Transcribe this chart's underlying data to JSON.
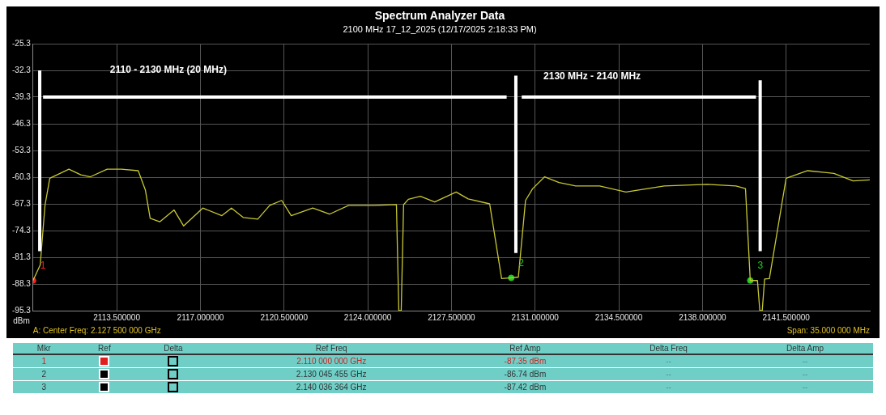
{
  "chart_data": {
    "type": "line",
    "title": "Spectrum Analyzer Data",
    "subtitle": "2100 MHz 17_12_2025 (12/17/2025 2:18:33 PM)",
    "ylabel": "dBm",
    "xlim": [
      2110,
      2145
    ],
    "xticks": [
      {
        "value": 2113.5,
        "label": "2113.500000"
      },
      {
        "value": 2117,
        "label": "2117.000000"
      },
      {
        "value": 2120.5,
        "label": "2120.500000"
      },
      {
        "value": 2124,
        "label": "2124.000000"
      },
      {
        "value": 2127.5,
        "label": "2127.500000"
      },
      {
        "value": 2131,
        "label": "2131.000000"
      },
      {
        "value": 2134.5,
        "label": "2134.500000"
      },
      {
        "value": 2138,
        "label": "2138.000000"
      },
      {
        "value": 2141.5,
        "label": "2141.500000"
      }
    ],
    "ylim": [
      -95.3,
      -25.3
    ],
    "yticks": [
      -95.3,
      -88.3,
      -81.3,
      -74.3,
      -67.3,
      -60.3,
      -53.3,
      -46.3,
      -39.3,
      -32.3,
      -25.3
    ],
    "grid": true,
    "legend": false,
    "series": [
      {
        "color": "#c8c832",
        "marker": "none",
        "x": [
          2110,
          2110.3,
          2110.5,
          2110.7,
          2111.2,
          2111.5,
          2112,
          2112.4,
          2113.1,
          2113.7,
          2114.4,
          2114.7,
          2114.9,
          2115.3,
          2115.9,
          2116.3,
          2117.1,
          2117.9,
          2118.3,
          2118.8,
          2119.4,
          2119.9,
          2120.4,
          2120.8,
          2121.7,
          2122.4,
          2123.2,
          2124.3,
          2125.2,
          2125.3,
          2125.4,
          2125.5,
          2125.7,
          2126.2,
          2126.8,
          2127.7,
          2128.2,
          2129.1,
          2129.6,
          2130,
          2130.3,
          2130.6,
          2130.9,
          2131.4,
          2132,
          2132.7,
          2133.7,
          2134.8,
          2136.4,
          2138.2,
          2139.4,
          2139.8,
          2140,
          2140.3,
          2140.4,
          2140.5,
          2140.6,
          2140.8,
          2141.5,
          2142.4,
          2143.5,
          2144.3,
          2145
        ],
        "values": [
          -87.4,
          -83.3,
          -67.7,
          -60.6,
          -59.1,
          -58.2,
          -59.7,
          -60.2,
          -58.2,
          -58.2,
          -58.6,
          -63.7,
          -71.1,
          -72,
          -68.9,
          -73.1,
          -68.4,
          -70.4,
          -68.4,
          -70.9,
          -71.3,
          -67.7,
          -66.4,
          -70.4,
          -68.4,
          -70,
          -67.7,
          -67.7,
          -67.5,
          -95.3,
          -95.3,
          -67.5,
          -66.1,
          -65.3,
          -66.8,
          -64.2,
          -66,
          -67.3,
          -86.9,
          -86.7,
          -86.5,
          -66.4,
          -63.3,
          -60.2,
          -61.7,
          -62.6,
          -62.6,
          -64.2,
          -62.6,
          -62.2,
          -62.6,
          -63.3,
          -87.4,
          -87.4,
          -95.3,
          -95.3,
          -87,
          -86.9,
          -60.6,
          -58.6,
          -59.3,
          -61.3,
          -61
        ]
      },
      {
        "type": "scatter",
        "marker": "circle",
        "x": [
          2110,
          2130,
          2140
        ],
        "values": [
          -87.4,
          -86.7,
          -87.4
        ],
        "colors": [
          "#ff2020",
          "#22cc22",
          "#22cc22"
        ]
      }
    ],
    "annotations": [
      "A: Center Freq: 2.127 500 000 GHz",
      "Span: 35.000 000 MHz",
      "2110 - 2130 MHz (20 MHz)",
      "2130 MHz - 2140 MHz",
      {
        "text": "1",
        "x": 2110,
        "y": -87.4
      },
      {
        "text": "2",
        "x": 2130,
        "y": -86.7
      },
      {
        "text": "3",
        "x": 2140,
        "y": -87.4
      },
      "Mkr",
      "Ref",
      "Delta",
      "Ref Freq",
      "Ref Amp",
      "Delta Freq",
      "Delta Amp",
      "1",
      "2.110 000 000 GHz",
      "-87.35 dBm",
      "--",
      "--",
      "2",
      "2.130 045 455 GHz",
      "-86.74 dBm",
      "--",
      "--",
      "3",
      "2.140 036 364 GHz",
      "-87.42 dBm",
      "--",
      "--"
    ]
  }
}
